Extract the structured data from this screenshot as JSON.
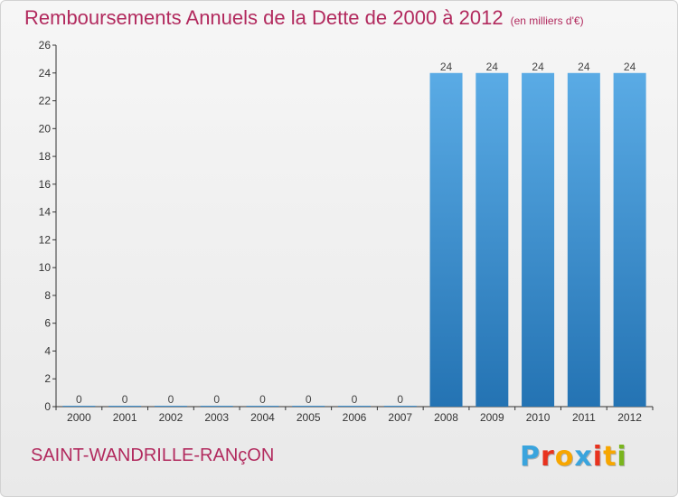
{
  "header": {
    "title": "Remboursements Annuels de la Dette de 2000 à 2012",
    "unit": "(en milliers d'€)"
  },
  "footer": {
    "city": "SAINT-WANDRILLE-RANçON",
    "logo": {
      "letters": [
        "P",
        "r",
        "o",
        "x",
        "i",
        "t",
        "i"
      ],
      "colors": [
        "#3aa4dd",
        "#e8321e",
        "#f7a600",
        "#3aa4dd",
        "#e8321e",
        "#f7a600",
        "#7ab51d"
      ]
    }
  },
  "colors": {
    "bar_top": "#5aabe5",
    "bar_bottom": "#2473b3",
    "axis": "#333333",
    "grid": "#cfcfcf"
  },
  "chart_data": {
    "type": "bar",
    "categories": [
      "2000",
      "2001",
      "2002",
      "2003",
      "2004",
      "2005",
      "2006",
      "2007",
      "2008",
      "2009",
      "2010",
      "2011",
      "2012"
    ],
    "values": [
      0,
      0,
      0,
      0,
      0,
      0,
      0,
      0,
      24,
      24,
      24,
      24,
      24
    ],
    "data_labels": [
      "0",
      "0",
      "0",
      "0",
      "0",
      "0",
      "0",
      "0",
      "24",
      "24",
      "24",
      "24",
      "24"
    ],
    "yticks": [
      0,
      2,
      4,
      6,
      8,
      10,
      12,
      14,
      16,
      18,
      20,
      22,
      24,
      26
    ],
    "ylim": [
      0,
      26
    ],
    "xlabel": "",
    "ylabel": "",
    "grid": false,
    "legend": "none"
  }
}
